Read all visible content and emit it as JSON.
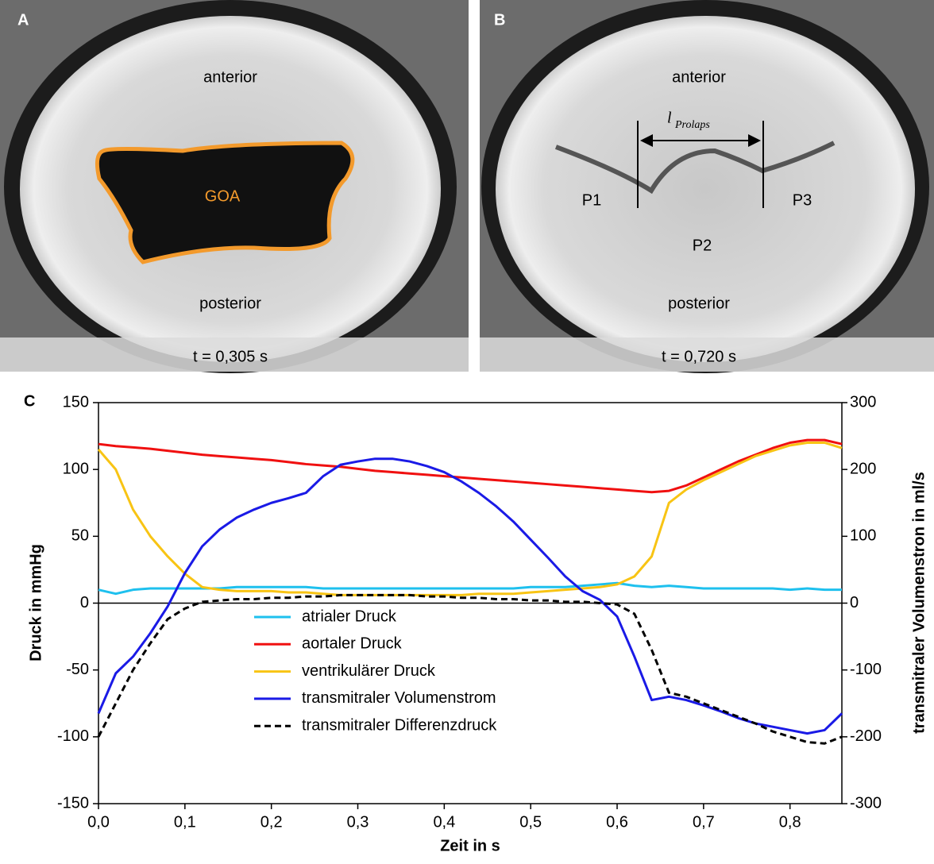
{
  "panel_a": {
    "letter": "A",
    "top": "anterior",
    "bottom": "posterior",
    "region": "GOA",
    "time": "t = 0,305 s"
  },
  "panel_b": {
    "letter": "B",
    "top": "anterior",
    "bottom": "posterior",
    "length": "l",
    "length_sub": "Prolaps",
    "leaflets": [
      "P1",
      "P2",
      "P3"
    ],
    "time": "t = 0,720 s"
  },
  "chart_data": {
    "type": "line",
    "panel": "C",
    "xlabel": "Zeit in s",
    "ylabel": "Druck in mmHg",
    "y2label": "transmitraler Volumenstron in ml/s",
    "xlim": [
      0,
      0.86
    ],
    "xticks": [
      {
        "value": 0,
        "label": "0,0"
      },
      {
        "value": 0.1,
        "label": "0,1"
      },
      {
        "value": 0.2,
        "label": "0,2"
      },
      {
        "value": 0.3,
        "label": "0,3"
      },
      {
        "value": 0.4,
        "label": "0,4"
      },
      {
        "value": 0.5,
        "label": "0,5"
      },
      {
        "value": 0.6,
        "label": "0,6"
      },
      {
        "value": 0.7,
        "label": "0,7"
      },
      {
        "value": 0.8,
        "label": "0,8"
      }
    ],
    "ylim": [
      -150,
      150
    ],
    "yticks": [
      -150,
      -100,
      -50,
      0,
      50,
      100,
      150
    ],
    "y2lim": [
      -300,
      300
    ],
    "y2ticks": [
      -300,
      -200,
      -100,
      0,
      100,
      200,
      300
    ],
    "x": [
      0,
      0.02,
      0.04,
      0.06,
      0.08,
      0.1,
      0.12,
      0.14,
      0.16,
      0.18,
      0.2,
      0.22,
      0.24,
      0.26,
      0.28,
      0.3,
      0.32,
      0.34,
      0.36,
      0.38,
      0.4,
      0.42,
      0.44,
      0.46,
      0.48,
      0.5,
      0.52,
      0.54,
      0.56,
      0.58,
      0.6,
      0.62,
      0.64,
      0.66,
      0.68,
      0.7,
      0.72,
      0.74,
      0.76,
      0.78,
      0.8,
      0.82,
      0.84,
      0.86
    ],
    "series": [
      {
        "name": "atrialer Druck",
        "color": "#1ec0ee",
        "values": [
          10,
          7,
          10,
          11,
          11,
          11,
          11,
          11,
          12,
          12,
          12,
          12,
          12,
          11,
          11,
          11,
          11,
          11,
          11,
          11,
          11,
          11,
          11,
          11,
          11,
          12,
          12,
          12,
          13,
          14,
          15,
          13,
          12,
          13,
          12,
          11,
          11,
          11,
          11,
          11,
          10,
          11,
          10,
          10
        ]
      },
      {
        "name": "aortaler Druck",
        "color": "#f01010",
        "values": [
          119,
          117.5,
          116.5,
          115.5,
          114,
          112.5,
          111,
          110,
          109,
          108,
          107,
          105.5,
          104,
          103,
          102,
          100.5,
          99,
          98,
          97,
          96,
          95,
          94,
          93,
          92,
          91,
          90,
          89,
          88,
          87,
          86,
          85,
          84,
          83,
          84,
          88,
          94,
          100,
          106,
          111,
          116,
          120,
          122,
          122,
          119
        ]
      },
      {
        "name": "ventrikulärer Druck",
        "color": "#f8c414",
        "values": [
          115,
          100,
          70,
          50,
          35,
          22,
          12,
          10,
          9,
          9,
          9,
          8,
          8,
          7,
          6,
          6,
          6,
          6,
          6,
          6,
          6,
          6,
          7,
          7,
          7,
          8,
          9,
          10,
          11,
          12,
          14,
          20,
          35,
          75,
          85,
          92,
          98,
          104,
          110,
          114,
          118,
          120,
          120,
          116
        ]
      },
      {
        "name": "transmitraler Volumenstrom",
        "color": "#1a1ae6",
        "axis": "y2",
        "values": [
          -165,
          -105,
          -80,
          -45,
          -5,
          45,
          85,
          110,
          128,
          140,
          150,
          157,
          165,
          190,
          207,
          212,
          216,
          216,
          212,
          205,
          196,
          182,
          165,
          145,
          122,
          95,
          68,
          40,
          18,
          5,
          -20,
          -80,
          -145,
          -140,
          -145,
          -153,
          -162,
          -172,
          -180,
          -185,
          -190,
          -195,
          -190,
          -165
        ]
      },
      {
        "name": "transmitraler Differenzdruck",
        "color": "#000000",
        "dashed": true,
        "values": [
          -100,
          -75,
          -50,
          -30,
          -12,
          -4,
          1,
          2,
          3,
          3,
          4,
          4,
          5,
          5,
          6,
          6,
          6,
          6,
          6,
          5,
          5,
          4,
          4,
          3,
          3,
          2,
          2,
          1,
          1,
          0,
          -1,
          -8,
          -35,
          -67,
          -70,
          -75,
          -80,
          -85,
          -90,
          -96,
          -100,
          -104,
          -105,
          -100
        ]
      }
    ]
  }
}
